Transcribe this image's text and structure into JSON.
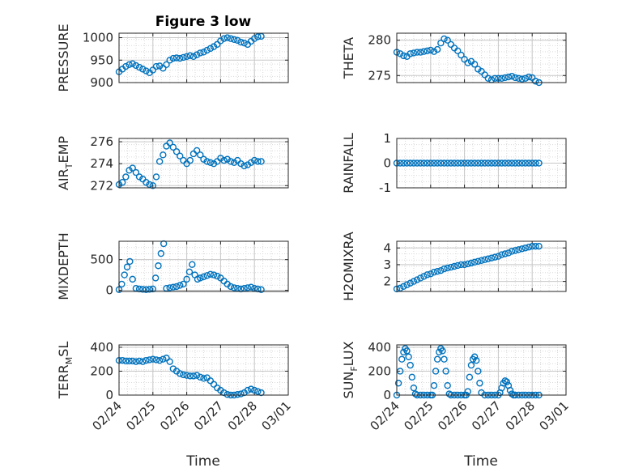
{
  "figure": {
    "title": "Figure 3 low",
    "xlabel": "Time",
    "marker_color": "#0072BD",
    "x_ticks": [
      "02/24",
      "02/25",
      "02/26",
      "02/27",
      "02/28",
      "03/01"
    ]
  },
  "chart_data": [
    {
      "id": "pressure",
      "type": "scatter",
      "ylabel": "PRESSURE",
      "ylabel_sub": "",
      "ylabel_tail": "",
      "ylim": [
        900,
        1010
      ],
      "yticks": [
        900,
        950,
        1000
      ],
      "grid": true,
      "x": [
        0.0,
        0.1,
        0.2,
        0.3,
        0.4,
        0.5,
        0.6,
        0.7,
        0.8,
        0.9,
        1.0,
        1.1,
        1.2,
        1.3,
        1.4,
        1.5,
        1.6,
        1.7,
        1.8,
        1.9,
        2.0,
        2.1,
        2.2,
        2.3,
        2.4,
        2.5,
        2.6,
        2.7,
        2.8,
        2.9,
        3.0,
        3.1,
        3.2,
        3.3,
        3.4,
        3.5,
        3.6,
        3.7,
        3.8,
        3.9,
        4.0,
        4.1,
        4.2
      ],
      "y": [
        924,
        930,
        936,
        940,
        942,
        938,
        934,
        930,
        926,
        922,
        928,
        936,
        937,
        932,
        940,
        950,
        954,
        955,
        954,
        956,
        958,
        960,
        958,
        962,
        966,
        968,
        972,
        976,
        980,
        985,
        993,
        998,
        1000,
        998,
        996,
        994,
        990,
        988,
        985,
        992,
        998,
        1002,
        1003
      ]
    },
    {
      "id": "theta",
      "type": "scatter",
      "ylabel": "THETA",
      "ylabel_sub": "",
      "ylabel_tail": "",
      "ylim": [
        274,
        281
      ],
      "yticks": [
        275,
        280
      ],
      "grid": true,
      "x": [
        0.0,
        0.1,
        0.2,
        0.3,
        0.4,
        0.5,
        0.6,
        0.7,
        0.8,
        0.9,
        1.0,
        1.1,
        1.2,
        1.3,
        1.4,
        1.5,
        1.6,
        1.7,
        1.8,
        1.9,
        2.0,
        2.1,
        2.2,
        2.3,
        2.4,
        2.5,
        2.6,
        2.7,
        2.8,
        2.9,
        3.0,
        3.1,
        3.2,
        3.3,
        3.4,
        3.5,
        3.6,
        3.7,
        3.8,
        3.9,
        4.0,
        4.1,
        4.2
      ],
      "y": [
        278.3,
        278.1,
        277.8,
        277.7,
        278.1,
        278.2,
        278.3,
        278.3,
        278.4,
        278.5,
        278.6,
        278.4,
        278.7,
        279.6,
        280.2,
        280.0,
        279.4,
        278.9,
        278.5,
        277.9,
        277.3,
        276.8,
        277.0,
        276.6,
        275.9,
        275.6,
        275.1,
        274.6,
        274.4,
        274.6,
        274.6,
        274.6,
        274.7,
        274.8,
        274.9,
        274.7,
        274.6,
        274.5,
        274.6,
        274.8,
        274.7,
        274.2,
        274.0
      ]
    },
    {
      "id": "air_temp",
      "type": "scatter",
      "ylabel": "AIR",
      "ylabel_sub": "T",
      "ylabel_tail": "EMP",
      "ylim": [
        271.8,
        276.3
      ],
      "yticks": [
        272,
        274,
        276
      ],
      "grid": true,
      "x": [
        0.0,
        0.1,
        0.2,
        0.3,
        0.4,
        0.5,
        0.6,
        0.7,
        0.8,
        0.9,
        1.0,
        1.1,
        1.2,
        1.3,
        1.4,
        1.5,
        1.6,
        1.7,
        1.8,
        1.9,
        2.0,
        2.1,
        2.2,
        2.3,
        2.4,
        2.5,
        2.6,
        2.7,
        2.8,
        2.9,
        3.0,
        3.1,
        3.2,
        3.3,
        3.4,
        3.5,
        3.6,
        3.7,
        3.8,
        3.9,
        4.0,
        4.1,
        4.2
      ],
      "y": [
        272.1,
        272.3,
        272.8,
        273.4,
        273.6,
        273.2,
        272.8,
        272.6,
        272.3,
        272.1,
        272.0,
        272.8,
        274.2,
        274.8,
        275.6,
        275.9,
        275.5,
        275.1,
        274.7,
        274.3,
        274.0,
        274.3,
        274.9,
        275.2,
        274.8,
        274.4,
        274.2,
        274.1,
        274.0,
        274.2,
        274.5,
        274.3,
        274.4,
        274.2,
        274.1,
        274.3,
        274.0,
        273.8,
        273.9,
        274.1,
        274.3,
        274.2,
        274.2
      ]
    },
    {
      "id": "rainfall",
      "type": "scatter",
      "ylabel": "RAINFALL",
      "ylabel_sub": "",
      "ylabel_tail": "",
      "ylim": [
        -1,
        1
      ],
      "yticks": [
        -1,
        0,
        1
      ],
      "grid": true,
      "x": [
        0.0,
        0.1,
        0.2,
        0.3,
        0.4,
        0.5,
        0.6,
        0.7,
        0.8,
        0.9,
        1.0,
        1.1,
        1.2,
        1.3,
        1.4,
        1.5,
        1.6,
        1.7,
        1.8,
        1.9,
        2.0,
        2.1,
        2.2,
        2.3,
        2.4,
        2.5,
        2.6,
        2.7,
        2.8,
        2.9,
        3.0,
        3.1,
        3.2,
        3.3,
        3.4,
        3.5,
        3.6,
        3.7,
        3.8,
        3.9,
        4.0,
        4.1,
        4.2
      ],
      "y": [
        0,
        0,
        0,
        0,
        0,
        0,
        0,
        0,
        0,
        0,
        0,
        0,
        0,
        0,
        0,
        0,
        0,
        0,
        0,
        0,
        0,
        0,
        0,
        0,
        0,
        0,
        0,
        0,
        0,
        0,
        0,
        0,
        0,
        0,
        0,
        0,
        0,
        0,
        0,
        0,
        0,
        0,
        0
      ]
    },
    {
      "id": "mixdepth",
      "type": "scatter",
      "ylabel": "MIXDEPTH",
      "ylabel_sub": "",
      "ylabel_tail": "",
      "ylim": [
        -20,
        800
      ],
      "yticks": [
        0,
        500
      ],
      "grid": true,
      "x": [
        0.0,
        0.08,
        0.16,
        0.24,
        0.32,
        0.4,
        0.5,
        0.6,
        0.7,
        0.8,
        0.9,
        1.0,
        1.08,
        1.16,
        1.24,
        1.32,
        1.4,
        1.5,
        1.6,
        1.7,
        1.8,
        1.9,
        2.0,
        2.08,
        2.16,
        2.24,
        2.32,
        2.4,
        2.5,
        2.6,
        2.7,
        2.8,
        2.9,
        3.0,
        3.1,
        3.2,
        3.3,
        3.4,
        3.5,
        3.6,
        3.7,
        3.8,
        3.9,
        4.0,
        4.1,
        4.2
      ],
      "y": [
        10,
        100,
        250,
        380,
        470,
        180,
        30,
        20,
        15,
        10,
        15,
        20,
        200,
        400,
        600,
        760,
        30,
        40,
        50,
        60,
        80,
        100,
        180,
        300,
        420,
        250,
        180,
        200,
        220,
        240,
        260,
        250,
        230,
        200,
        150,
        100,
        60,
        40,
        30,
        20,
        30,
        40,
        50,
        30,
        20,
        10
      ]
    },
    {
      "id": "h2omixra",
      "type": "scatter",
      "ylabel": "H2OMIXRA",
      "ylabel_sub": "",
      "ylabel_tail": "",
      "ylim": [
        1.4,
        4.4
      ],
      "yticks": [
        2,
        3,
        4
      ],
      "grid": true,
      "x": [
        0.0,
        0.1,
        0.2,
        0.3,
        0.4,
        0.5,
        0.6,
        0.7,
        0.8,
        0.9,
        1.0,
        1.1,
        1.2,
        1.3,
        1.4,
        1.5,
        1.6,
        1.7,
        1.8,
        1.9,
        2.0,
        2.1,
        2.2,
        2.3,
        2.4,
        2.5,
        2.6,
        2.7,
        2.8,
        2.9,
        3.0,
        3.1,
        3.2,
        3.3,
        3.4,
        3.5,
        3.6,
        3.7,
        3.8,
        3.9,
        4.0,
        4.1,
        4.2
      ],
      "y": [
        1.55,
        1.6,
        1.7,
        1.8,
        1.9,
        2.0,
        2.1,
        2.2,
        2.3,
        2.4,
        2.45,
        2.55,
        2.6,
        2.65,
        2.75,
        2.8,
        2.85,
        2.9,
        2.95,
        3.0,
        3.0,
        3.05,
        3.1,
        3.15,
        3.2,
        3.25,
        3.3,
        3.35,
        3.4,
        3.45,
        3.5,
        3.6,
        3.65,
        3.7,
        3.8,
        3.85,
        3.9,
        3.95,
        4.0,
        4.05,
        4.1,
        4.1,
        4.1
      ]
    },
    {
      "id": "terr_msl",
      "type": "scatter",
      "ylabel": "TERR",
      "ylabel_sub": "M",
      "ylabel_tail": "SL",
      "ylim": [
        0,
        420
      ],
      "yticks": [
        0,
        200,
        400
      ],
      "grid": true,
      "x": [
        0.0,
        0.1,
        0.2,
        0.3,
        0.4,
        0.5,
        0.6,
        0.7,
        0.8,
        0.9,
        1.0,
        1.1,
        1.2,
        1.3,
        1.4,
        1.5,
        1.6,
        1.7,
        1.8,
        1.9,
        2.0,
        2.1,
        2.2,
        2.3,
        2.4,
        2.5,
        2.6,
        2.7,
        2.8,
        2.9,
        3.0,
        3.1,
        3.2,
        3.3,
        3.4,
        3.5,
        3.6,
        3.7,
        3.8,
        3.9,
        4.0,
        4.1,
        4.2
      ],
      "y": [
        290,
        290,
        285,
        285,
        285,
        280,
        285,
        280,
        290,
        295,
        300,
        295,
        290,
        300,
        310,
        280,
        220,
        200,
        180,
        170,
        165,
        160,
        160,
        165,
        150,
        140,
        145,
        120,
        90,
        60,
        40,
        20,
        5,
        0,
        0,
        5,
        10,
        20,
        40,
        50,
        40,
        30,
        20
      ]
    },
    {
      "id": "sun_flux",
      "type": "scatter",
      "ylabel": "SUN",
      "ylabel_sub": "F",
      "ylabel_tail": "LUX",
      "ylim": [
        0,
        420
      ],
      "yticks": [
        0,
        200,
        400
      ],
      "grid": true,
      "x": [
        0.0,
        0.05,
        0.1,
        0.15,
        0.2,
        0.25,
        0.3,
        0.35,
        0.4,
        0.45,
        0.5,
        0.55,
        0.6,
        0.7,
        0.8,
        0.9,
        1.0,
        1.05,
        1.1,
        1.15,
        1.2,
        1.25,
        1.3,
        1.35,
        1.4,
        1.45,
        1.5,
        1.55,
        1.6,
        1.7,
        1.8,
        1.9,
        2.0,
        2.05,
        2.1,
        2.15,
        2.2,
        2.25,
        2.3,
        2.35,
        2.4,
        2.45,
        2.5,
        2.6,
        2.7,
        2.8,
        2.9,
        3.0,
        3.05,
        3.1,
        3.15,
        3.2,
        3.25,
        3.3,
        3.35,
        3.4,
        3.45,
        3.5,
        3.6,
        3.7,
        3.8,
        3.9,
        4.0,
        4.1,
        4.2
      ],
      "y": [
        0,
        100,
        200,
        300,
        360,
        390,
        370,
        320,
        250,
        150,
        60,
        10,
        0,
        0,
        0,
        0,
        0,
        0,
        80,
        200,
        300,
        360,
        390,
        370,
        300,
        200,
        80,
        10,
        0,
        0,
        0,
        0,
        0,
        0,
        30,
        150,
        250,
        300,
        320,
        290,
        200,
        100,
        20,
        0,
        0,
        0,
        0,
        0,
        20,
        60,
        100,
        120,
        110,
        80,
        40,
        10,
        0,
        0,
        0,
        0,
        0,
        0,
        0,
        0,
        0
      ]
    }
  ]
}
